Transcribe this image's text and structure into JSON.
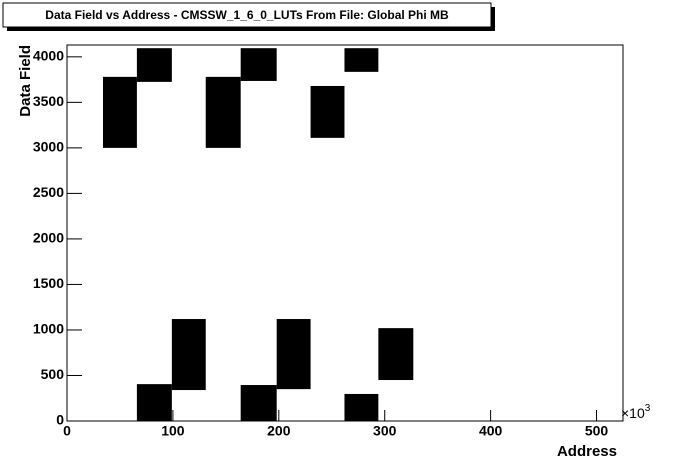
{
  "chart_data": {
    "type": "range",
    "title": "Data Field vs Address - CMSSW_1_6_0_LUTs From File: Global Phi MB",
    "x_label": "Address",
    "y_label": "Data Field",
    "x_multiplier": {
      "base": "×10",
      "exponent": "3"
    },
    "color": "#000000",
    "x_start": [
      34,
      66,
      131,
      164,
      230,
      262,
      66,
      99,
      164,
      198,
      262,
      294
    ],
    "x_end": [
      66,
      99,
      164,
      198,
      262,
      294,
      99,
      131,
      198,
      230,
      294,
      327
    ],
    "y_start": [
      3000,
      3725,
      3000,
      3735,
      3110,
      3835,
      0,
      340,
      0,
      350,
      0,
      450
    ],
    "y_end": [
      3780,
      4095,
      3780,
      4095,
      3680,
      4095,
      405,
      1120,
      395,
      1120,
      297,
      1020
    ],
    "xlim": [
      0,
      525
    ],
    "xticks": [
      0,
      100,
      200,
      300,
      400,
      500
    ],
    "ylim": [
      0,
      4130
    ],
    "yticks": [
      0,
      500,
      1000,
      1500,
      2000,
      2500,
      3000,
      3500,
      4000
    ]
  }
}
